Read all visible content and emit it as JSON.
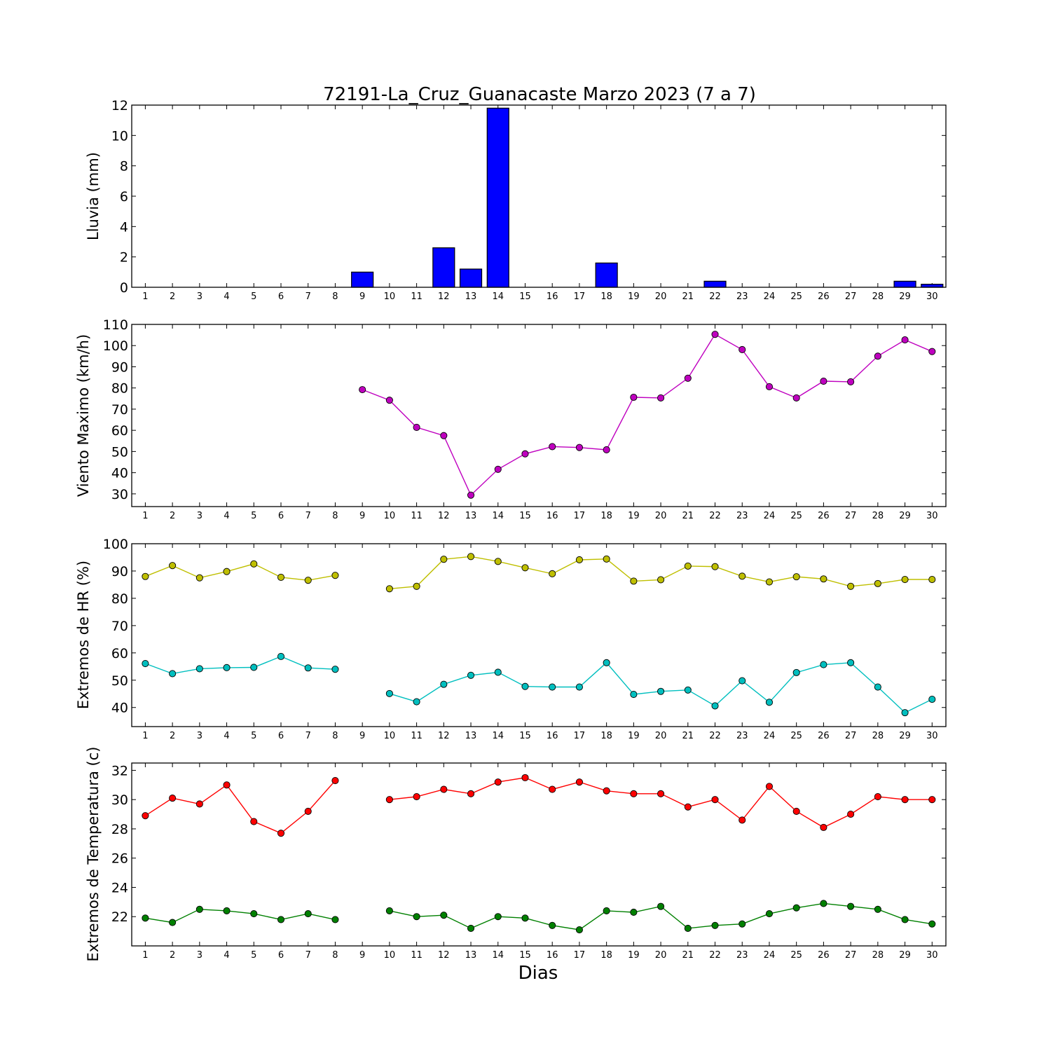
{
  "title": "72191-La_Cruz_Guanacaste Marzo 2023  (7 a 7)",
  "xlabel": "Dias",
  "chart_data": [
    {
      "type": "bar",
      "ylabel": "Lluvia (mm)",
      "ylim": [
        0,
        12
      ],
      "yticks": [
        0,
        2,
        4,
        6,
        8,
        10,
        12
      ],
      "x": [
        1,
        2,
        3,
        4,
        5,
        6,
        7,
        8,
        9,
        10,
        11,
        12,
        13,
        14,
        15,
        16,
        17,
        18,
        19,
        20,
        21,
        22,
        23,
        24,
        25,
        26,
        27,
        28,
        29,
        30
      ],
      "xticks": [
        "1",
        "2",
        "3",
        "4",
        "5",
        "6",
        "7",
        "8",
        "9",
        "10",
        "11",
        "12",
        "13",
        "14",
        "15",
        "16",
        "17",
        "18",
        "19",
        "20",
        "21",
        "22",
        "23",
        "24",
        "25",
        "26",
        "27",
        "28",
        "29",
        "30"
      ],
      "color": "#0000ff",
      "series": [
        {
          "values": [
            0,
            0,
            0,
            0,
            0,
            0,
            0,
            0,
            1.0,
            0,
            0,
            2.6,
            1.2,
            11.8,
            0,
            0,
            0,
            1.6,
            0,
            0,
            0,
            0.4,
            0,
            0,
            0,
            0,
            0,
            0,
            0.4,
            0.2
          ]
        }
      ]
    },
    {
      "type": "line",
      "ylabel": "Viento Maximo (km/h)",
      "ylim": [
        24,
        110
      ],
      "yticks": [
        30,
        40,
        50,
        60,
        70,
        80,
        90,
        100,
        110
      ],
      "xticks": [
        "1",
        "2",
        "3",
        "4",
        "5",
        "6",
        "7",
        "8",
        "9",
        "10",
        "11",
        "12",
        "13",
        "14",
        "15",
        "16",
        "17",
        "18",
        "19",
        "20",
        "21",
        "22",
        "23",
        "24",
        "25",
        "26",
        "27",
        "28",
        "29",
        "30"
      ],
      "series": [
        {
          "color": "#bf00bf",
          "x": [
            9,
            10,
            11,
            12,
            13,
            14,
            15,
            16,
            17,
            18,
            19,
            20,
            21,
            22,
            23,
            24,
            25,
            26,
            27,
            28,
            29,
            30
          ],
          "values": [
            79.2,
            74.2,
            61.4,
            57.5,
            29.4,
            41.6,
            48.9,
            52.3,
            51.9,
            50.8,
            75.6,
            75.3,
            84.6,
            105.3,
            98.1,
            80.6,
            75.3,
            83.2,
            82.9,
            95.0,
            102.7,
            97.2
          ]
        }
      ]
    },
    {
      "type": "line",
      "ylabel": "Extremos de HR (%)",
      "ylim": [
        33,
        100
      ],
      "yticks": [
        40,
        50,
        60,
        70,
        80,
        90,
        100
      ],
      "xticks": [
        "1",
        "2",
        "3",
        "4",
        "5",
        "6",
        "7",
        "8",
        "9",
        "10",
        "11",
        "12",
        "13",
        "14",
        "15",
        "16",
        "17",
        "18",
        "19",
        "20",
        "21",
        "22",
        "23",
        "24",
        "25",
        "26",
        "27",
        "28",
        "29",
        "30"
      ],
      "series": [
        {
          "color": "#bfbf00",
          "segments": [
            {
              "x": [
                1,
                2,
                3,
                4,
                5,
                6,
                7,
                8
              ],
              "values": [
                88.0,
                92.0,
                87.5,
                89.8,
                92.6,
                87.7,
                86.6,
                88.4
              ]
            },
            {
              "x": [
                10,
                11,
                12,
                13,
                14,
                15,
                16,
                17,
                18,
                19,
                20,
                21,
                22,
                23,
                24,
                25,
                26,
                27,
                28,
                29,
                30
              ],
              "values": [
                83.5,
                84.4,
                94.3,
                95.3,
                93.5,
                91.2,
                89.0,
                94.1,
                94.4,
                86.3,
                86.8,
                91.8,
                91.6,
                88.1,
                86.0,
                87.9,
                87.1,
                84.4,
                85.4,
                86.9,
                86.9
              ]
            }
          ]
        },
        {
          "color": "#00bfbf",
          "segments": [
            {
              "x": [
                1,
                2,
                3,
                4,
                5,
                6,
                7,
                8
              ],
              "values": [
                56.1,
                52.4,
                54.2,
                54.6,
                54.7,
                58.7,
                54.5,
                54.0
              ]
            },
            {
              "x": [
                10,
                11,
                12,
                13,
                14,
                15,
                16,
                17,
                18,
                19,
                20,
                21,
                22,
                23,
                24,
                25,
                26,
                27,
                28,
                29,
                30
              ],
              "values": [
                45.1,
                42.1,
                48.5,
                51.8,
                52.9,
                47.7,
                47.5,
                47.5,
                56.4,
                44.8,
                45.9,
                46.4,
                40.6,
                49.8,
                41.9,
                52.8,
                55.7,
                56.4,
                47.5,
                38.1,
                43.0
              ]
            }
          ]
        }
      ]
    },
    {
      "type": "line",
      "ylabel": "Extremos de Temperatura (c)",
      "ylim": [
        20,
        32.5
      ],
      "yticks": [
        22,
        24,
        26,
        28,
        30,
        32
      ],
      "xticks": [
        "1",
        "2",
        "3",
        "4",
        "5",
        "6",
        "7",
        "8",
        "9",
        "10",
        "11",
        "12",
        "13",
        "14",
        "15",
        "16",
        "17",
        "18",
        "19",
        "20",
        "21",
        "22",
        "23",
        "24",
        "25",
        "26",
        "27",
        "28",
        "29",
        "30"
      ],
      "series": [
        {
          "color": "#ff0000",
          "segments": [
            {
              "x": [
                1,
                2,
                3,
                4,
                5,
                6,
                7,
                8
              ],
              "values": [
                28.9,
                30.1,
                29.7,
                31.0,
                28.5,
                27.7,
                29.2,
                31.3
              ]
            },
            {
              "x": [
                10,
                11,
                12,
                13,
                14,
                15,
                16,
                17,
                18,
                19,
                20,
                21,
                22,
                23,
                24,
                25,
                26,
                27,
                28,
                29,
                30
              ],
              "values": [
                30.0,
                30.2,
                30.7,
                30.4,
                31.2,
                31.5,
                30.7,
                31.2,
                30.6,
                30.4,
                30.4,
                29.5,
                30.0,
                28.6,
                30.9,
                29.2,
                28.1,
                29.0,
                30.2,
                30.0,
                30.0
              ]
            }
          ]
        },
        {
          "color": "#008000",
          "segments": [
            {
              "x": [
                1,
                2,
                3,
                4,
                5,
                6,
                7,
                8
              ],
              "values": [
                21.9,
                21.6,
                22.5,
                22.4,
                22.2,
                21.8,
                22.2,
                21.8
              ]
            },
            {
              "x": [
                10,
                11,
                12,
                13,
                14,
                15,
                16,
                17,
                18,
                19,
                20,
                21,
                22,
                23,
                24,
                25,
                26,
                27,
                28,
                29,
                30
              ],
              "values": [
                22.4,
                22.0,
                22.1,
                21.2,
                22.0,
                21.9,
                21.4,
                21.1,
                22.4,
                22.3,
                22.7,
                21.2,
                21.4,
                21.5,
                22.2,
                22.6,
                22.9,
                22.7,
                22.5,
                21.8,
                21.5
              ]
            }
          ]
        }
      ]
    }
  ]
}
